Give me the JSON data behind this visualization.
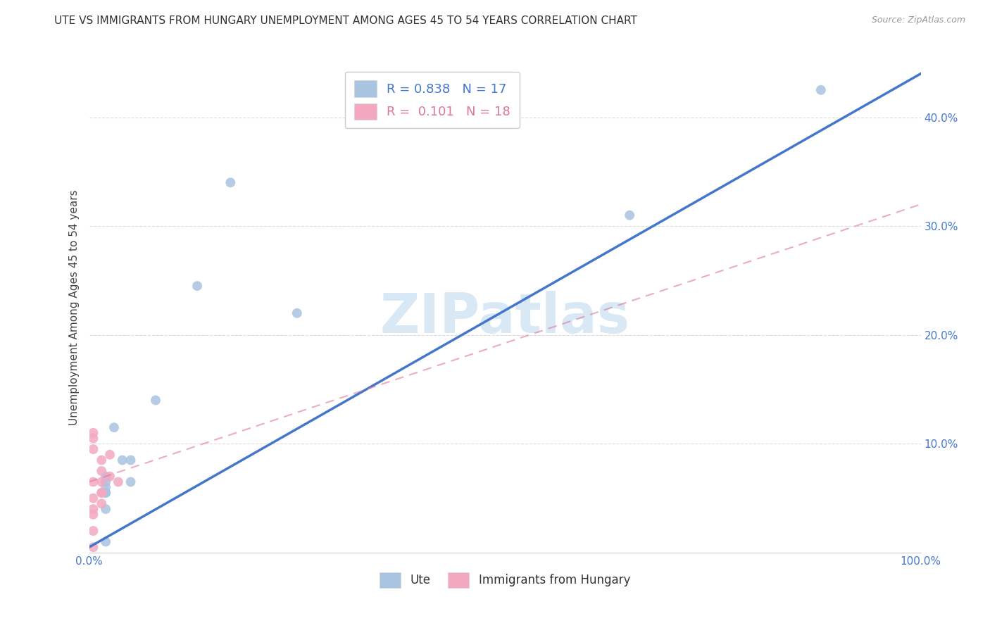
{
  "title": "UTE VS IMMIGRANTS FROM HUNGARY UNEMPLOYMENT AMONG AGES 45 TO 54 YEARS CORRELATION CHART",
  "source": "Source: ZipAtlas.com",
  "ylabel": "Unemployment Among Ages 45 to 54 years",
  "xlim": [
    0.0,
    1.0
  ],
  "ylim": [
    0.0,
    0.45
  ],
  "xticks": [
    0.0,
    0.1,
    0.2,
    0.3,
    0.4,
    0.5,
    0.6,
    0.7,
    0.8,
    0.9,
    1.0
  ],
  "xtick_labels": [
    "0.0%",
    "",
    "",
    "",
    "",
    "",
    "",
    "",
    "",
    "",
    "100.0%"
  ],
  "yticks": [
    0.1,
    0.2,
    0.3,
    0.4
  ],
  "ytick_labels": [
    "10.0%",
    "20.0%",
    "30.0%",
    "40.0%"
  ],
  "blue_color": "#A8C4E0",
  "pink_color": "#F4A8C0",
  "blue_line_color": "#4477CC",
  "pink_line_color": "#DD7799",
  "watermark_color": "#D8E8F5",
  "legend_R_blue": "0.838",
  "legend_N_blue": "17",
  "legend_R_pink": "0.101",
  "legend_N_pink": "18",
  "blue_scatter_x": [
    0.03,
    0.05,
    0.08,
    0.02,
    0.17,
    0.02,
    0.13,
    0.04,
    0.05,
    0.02,
    0.02,
    0.65,
    0.88,
    0.25,
    0.02,
    0.02,
    0.02
  ],
  "blue_scatter_y": [
    0.115,
    0.085,
    0.14,
    0.065,
    0.34,
    0.07,
    0.245,
    0.085,
    0.065,
    0.055,
    0.01,
    0.31,
    0.425,
    0.22,
    0.055,
    0.04,
    0.06
  ],
  "pink_scatter_x": [
    0.005,
    0.005,
    0.005,
    0.005,
    0.015,
    0.015,
    0.015,
    0.015,
    0.025,
    0.025,
    0.035,
    0.005,
    0.005,
    0.005,
    0.005,
    0.015,
    0.015,
    0.005
  ],
  "pink_scatter_y": [
    0.11,
    0.105,
    0.095,
    0.065,
    0.085,
    0.075,
    0.065,
    0.055,
    0.09,
    0.07,
    0.065,
    0.05,
    0.04,
    0.035,
    0.02,
    0.055,
    0.045,
    0.005
  ],
  "blue_line_x": [
    0.0,
    1.0
  ],
  "blue_line_y": [
    0.005,
    0.44
  ],
  "pink_line_x": [
    0.0,
    1.0
  ],
  "pink_line_y": [
    0.065,
    0.32
  ],
  "background_color": "#FFFFFF",
  "grid_color": "#DDDDDD",
  "title_fontsize": 11,
  "axis_label_fontsize": 11,
  "tick_fontsize": 11,
  "scatter_size": 100
}
